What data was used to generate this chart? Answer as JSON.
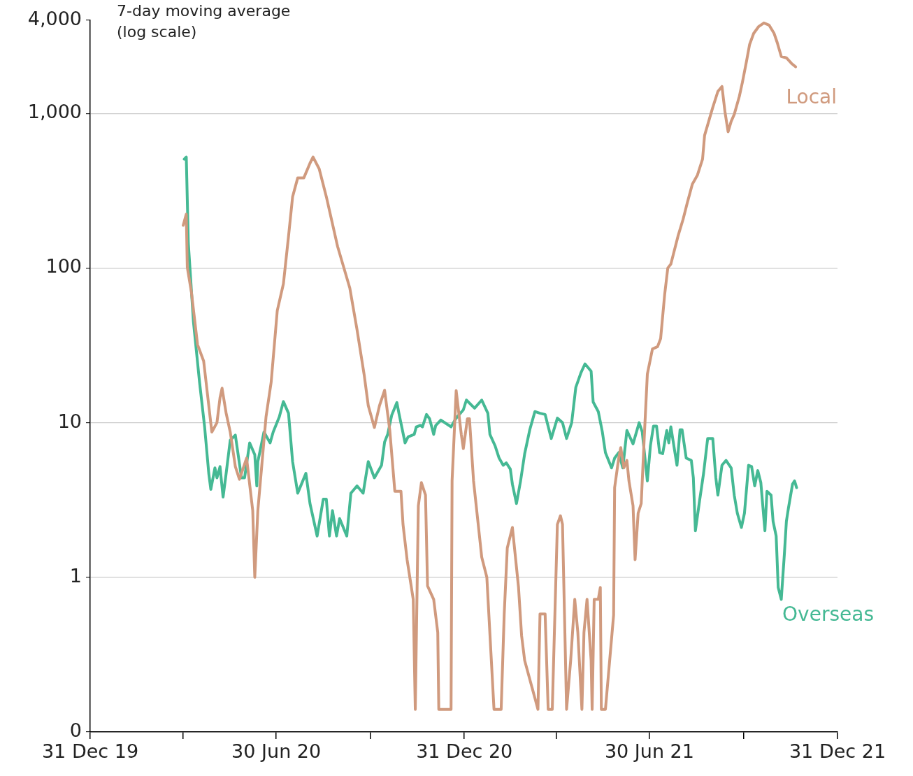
{
  "chart_data": {
    "type": "line",
    "ylabel": "7-day moving average (log scale)",
    "log": true,
    "grid": "y",
    "xlim": [
      "2019-12-31",
      "2021-12-31"
    ],
    "xticks": [
      {
        "value": "2019-12-31",
        "label": "31 Dec 19"
      },
      {
        "value": "2020-03-31",
        "label": null
      },
      {
        "value": "2020-06-30",
        "label": "30 Jun 20"
      },
      {
        "value": "2020-09-30",
        "label": null
      },
      {
        "value": "2020-12-31",
        "label": "31 Dec 20"
      },
      {
        "value": "2021-03-31",
        "label": null
      },
      {
        "value": "2021-06-30",
        "label": "30 Jun 21"
      },
      {
        "value": "2021-09-30",
        "label": null
      },
      {
        "value": "2021-12-31",
        "label": "31 Dec 21"
      }
    ],
    "ylim": [
      0.1,
      4000
    ],
    "yticks": [
      {
        "value": 0.1,
        "label": "0"
      },
      1,
      10,
      100,
      {
        "value": 1000,
        "label": "1,000"
      },
      {
        "value": 4000,
        "label": "4,000"
      }
    ],
    "series": [
      {
        "name": "Local",
        "color": "#d09a7e",
        "x": [
          "2020-03-31",
          "2020-04-03",
          "2020-04-04",
          "2020-04-08",
          "2020-04-14",
          "2020-04-20",
          "2020-04-25",
          "2020-04-28",
          "2020-05-03",
          "2020-05-06",
          "2020-05-08",
          "2020-05-12",
          "2020-05-16",
          "2020-05-21",
          "2020-05-25",
          "2020-06-01",
          "2020-06-07",
          "2020-06-09",
          "2020-06-12",
          "2020-06-20",
          "2020-06-25",
          "2020-07-01",
          "2020-07-07",
          "2020-07-12",
          "2020-07-16",
          "2020-07-21",
          "2020-07-27",
          "2020-08-02",
          "2020-08-05",
          "2020-08-11",
          "2020-08-18",
          "2020-08-29",
          "2020-09-10",
          "2020-09-17",
          "2020-09-24",
          "2020-09-28",
          "2020-10-04",
          "2020-10-09",
          "2020-10-14",
          "2020-10-19",
          "2020-10-24",
          "2020-10-30",
          "2020-11-01",
          "2020-11-05",
          "2020-11-11",
          "2020-11-13",
          "2020-11-16",
          "2020-11-19",
          "2020-11-23",
          "2020-11-25",
          "2020-12-01",
          "2020-12-05",
          "2020-12-06",
          "2020-12-18",
          "2020-12-19",
          "2020-12-23",
          "2020-12-28",
          "2020-12-30",
          "2021-01-03",
          "2021-01-05",
          "2021-01-09",
          "2021-01-17",
          "2021-01-22",
          "2021-01-29",
          "2021-02-05",
          "2021-02-08",
          "2021-02-11",
          "2021-02-16",
          "2021-02-22",
          "2021-02-25",
          "2021-02-28",
          "2021-03-13",
          "2021-03-15",
          "2021-03-20",
          "2021-03-23",
          "2021-03-27",
          "2021-04-01",
          "2021-04-04",
          "2021-04-06",
          "2021-04-10",
          "2021-04-14",
          "2021-04-18",
          "2021-04-21",
          "2021-04-25",
          "2021-04-27",
          "2021-04-30",
          "2021-05-04",
          "2021-05-05",
          "2021-05-07",
          "2021-05-11",
          "2021-05-13",
          "2021-05-14",
          "2021-05-18",
          "2021-05-26",
          "2021-05-27",
          "2021-05-31",
          "2021-06-02",
          "2021-06-05",
          "2021-06-08",
          "2021-06-10",
          "2021-06-14",
          "2021-06-16",
          "2021-06-19",
          "2021-06-22",
          "2021-06-25",
          "2021-06-28",
          "2021-07-03",
          "2021-07-08",
          "2021-07-11",
          "2021-07-15",
          "2021-07-18",
          "2021-07-21",
          "2021-07-28",
          "2021-08-02",
          "2021-08-06",
          "2021-08-11",
          "2021-08-16",
          "2021-08-21",
          "2021-08-23",
          "2021-08-27",
          "2021-08-31",
          "2021-09-05",
          "2021-09-09",
          "2021-09-12",
          "2021-09-15",
          "2021-09-18",
          "2021-09-21",
          "2021-09-26",
          "2021-09-29",
          "2021-10-03",
          "2021-10-06",
          "2021-10-10",
          "2021-10-15",
          "2021-10-20",
          "2021-10-25",
          "2021-10-30",
          "2021-11-02",
          "2021-11-06",
          "2021-11-11",
          "2021-11-16",
          "2021-11-20"
        ],
        "values": [
          189,
          223,
          101,
          70,
          32,
          25,
          12.9,
          8.7,
          10,
          14.5,
          16.7,
          11.5,
          8.7,
          5.2,
          4.3,
          5.9,
          2.7,
          1,
          2.7,
          10.9,
          18.2,
          53,
          79,
          160,
          289,
          383,
          383,
          476,
          522,
          438,
          289,
          138,
          74,
          40,
          20.4,
          12.9,
          9.3,
          12.9,
          16.2,
          9,
          3.6,
          3.6,
          2.2,
          1.3,
          0.72,
          0.14,
          2.9,
          4.1,
          3.4,
          0.88,
          0.72,
          0.44,
          0.14,
          0.14,
          4.2,
          16.1,
          8.4,
          6.8,
          10.6,
          10.6,
          4.2,
          1.35,
          1,
          0.14,
          0.14,
          0.58,
          1.55,
          2.1,
          0.86,
          0.42,
          0.29,
          0.14,
          0.58,
          0.58,
          0.14,
          0.14,
          2.2,
          2.5,
          2.2,
          0.14,
          0.29,
          0.72,
          0.44,
          0.14,
          0.44,
          0.72,
          0.29,
          0.14,
          0.72,
          0.72,
          0.86,
          0.14,
          0.14,
          0.57,
          3.8,
          5.9,
          6.9,
          5.1,
          5.7,
          4.2,
          2.9,
          1.3,
          2.6,
          3,
          8.1,
          20.6,
          30,
          31,
          35,
          68,
          100,
          106,
          161,
          207,
          263,
          348,
          399,
          506,
          721,
          888,
          1093,
          1387,
          1493,
          1016,
          760,
          888,
          985,
          1290,
          1589,
          2172,
          2786,
          3289,
          3650,
          3845,
          3727,
          3289,
          2874,
          2335,
          2287,
          2105,
          2000
        ]
      },
      {
        "name": "Overseas",
        "color": "#45b994",
        "x": [
          "2020-04-01",
          "2020-04-03",
          "2020-04-05",
          "2020-04-10",
          "2020-04-16",
          "2020-04-21",
          "2020-04-25",
          "2020-04-27",
          "2020-05-01",
          "2020-05-03",
          "2020-05-06",
          "2020-05-09",
          "2020-05-12",
          "2020-05-16",
          "2020-05-21",
          "2020-05-27",
          "2020-05-30",
          "2020-06-04",
          "2020-06-09",
          "2020-06-11",
          "2020-06-12",
          "2020-06-18",
          "2020-06-24",
          "2020-06-27",
          "2020-07-03",
          "2020-07-07",
          "2020-07-12",
          "2020-07-16",
          "2020-07-21",
          "2020-07-29",
          "2020-08-02",
          "2020-08-09",
          "2020-08-15",
          "2020-08-18",
          "2020-08-21",
          "2020-08-24",
          "2020-08-28",
          "2020-08-31",
          "2020-09-07",
          "2020-09-11",
          "2020-09-17",
          "2020-09-23",
          "2020-09-28",
          "2020-10-04",
          "2020-10-11",
          "2020-10-14",
          "2020-10-17",
          "2020-10-21",
          "2020-10-26",
          "2020-10-28",
          "2020-11-03",
          "2020-11-06",
          "2020-11-12",
          "2020-11-14",
          "2020-11-18",
          "2020-11-20",
          "2020-11-24",
          "2020-11-27",
          "2020-12-01",
          "2020-12-03",
          "2020-12-08",
          "2020-12-18",
          "2020-12-23",
          "2020-12-30",
          "2021-01-02",
          "2021-01-10",
          "2021-01-17",
          "2021-01-23",
          "2021-01-25",
          "2021-01-30",
          "2021-02-03",
          "2021-02-07",
          "2021-02-10",
          "2021-02-14",
          "2021-02-16",
          "2021-02-20",
          "2021-02-24",
          "2021-02-28",
          "2021-03-05",
          "2021-03-10",
          "2021-03-15",
          "2021-03-20",
          "2021-03-26",
          "2021-04-01",
          "2021-04-06",
          "2021-04-10",
          "2021-04-15",
          "2021-04-19",
          "2021-04-24",
          "2021-04-28",
          "2021-05-04",
          "2021-05-06",
          "2021-05-11",
          "2021-05-15",
          "2021-05-18",
          "2021-05-24",
          "2021-05-27",
          "2021-05-31",
          "2021-06-04",
          "2021-06-08",
          "2021-06-14",
          "2021-06-20",
          "2021-06-23",
          "2021-06-28",
          "2021-07-01",
          "2021-07-04",
          "2021-07-07",
          "2021-07-10",
          "2021-07-13",
          "2021-07-17",
          "2021-07-19",
          "2021-07-21",
          "2021-07-25",
          "2021-07-27",
          "2021-07-30",
          "2021-08-01",
          "2021-08-05",
          "2021-08-10",
          "2021-08-12",
          "2021-08-14",
          "2021-08-18",
          "2021-08-22",
          "2021-08-26",
          "2021-08-31",
          "2021-09-03",
          "2021-09-05",
          "2021-09-09",
          "2021-09-13",
          "2021-09-18",
          "2021-09-21",
          "2021-09-24",
          "2021-09-28",
          "2021-10-01",
          "2021-10-05",
          "2021-10-08",
          "2021-10-11",
          "2021-10-14",
          "2021-10-17",
          "2021-10-21",
          "2021-10-23",
          "2021-10-27",
          "2021-10-29",
          "2021-11-01",
          "2021-11-03",
          "2021-11-06",
          "2021-11-09",
          "2021-11-11",
          "2021-11-13",
          "2021-11-17",
          "2021-11-19",
          "2021-11-21"
        ],
        "values": [
          506,
          522,
          145,
          45,
          18.2,
          9.3,
          4.7,
          3.7,
          5.1,
          4.4,
          5.2,
          3.3,
          4.7,
          7.7,
          8.3,
          4.4,
          4.4,
          7.4,
          6.2,
          3.9,
          5.6,
          8.7,
          7.4,
          8.7,
          10.9,
          13.7,
          11.5,
          5.6,
          3.5,
          4.7,
          3,
          1.85,
          3.2,
          3.2,
          1.85,
          2.7,
          1.85,
          2.4,
          1.85,
          3.5,
          3.9,
          3.5,
          5.6,
          4.4,
          5.3,
          7.5,
          8.4,
          11.2,
          13.5,
          11.5,
          7.4,
          8.1,
          8.4,
          9.4,
          9.6,
          9.4,
          11.3,
          10.6,
          8.4,
          9.6,
          10.4,
          9.4,
          10.7,
          12.1,
          14,
          12.4,
          14,
          11.5,
          8.4,
          7.1,
          5.9,
          5.3,
          5.5,
          5,
          4,
          3,
          4.2,
          6.3,
          9,
          11.8,
          11.5,
          11.3,
          7.9,
          10.7,
          10,
          7.9,
          10,
          16.9,
          21,
          24,
          21.5,
          13.6,
          11.8,
          8.7,
          6.4,
          5.1,
          5.9,
          6.4,
          5.1,
          8.9,
          7.3,
          10,
          8.7,
          4.2,
          7.1,
          9.5,
          9.5,
          6.4,
          6.3,
          8.9,
          7.4,
          9.4,
          6.4,
          5.3,
          9,
          9,
          5.9,
          5.7,
          4.4,
          2,
          3.1,
          4.7,
          7.9,
          7.9,
          4.4,
          3.4,
          5.3,
          5.7,
          5.1,
          3.4,
          2.6,
          2.1,
          2.6,
          5.3,
          5.2,
          3.9,
          4.9,
          4.1,
          2,
          3.6,
          3.4,
          2.3,
          1.85,
          0.86,
          0.72,
          1.4,
          2.3,
          2.8,
          4,
          4.2,
          3.8
        ]
      }
    ]
  }
}
